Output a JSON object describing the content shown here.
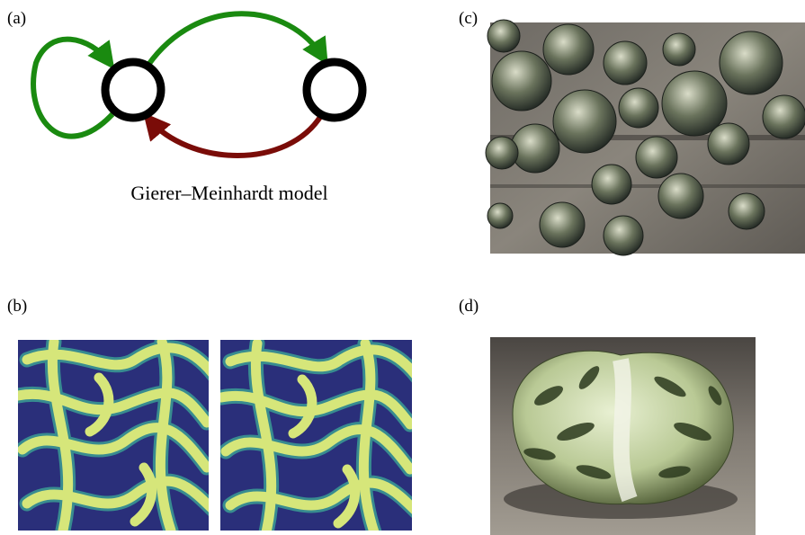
{
  "panels": [
    {
      "label": "(a)",
      "caption": "Gierer–Meinhardt model"
    },
    {
      "label": "(b)"
    },
    {
      "label": "(c)"
    },
    {
      "label": "(d)"
    }
  ]
}
